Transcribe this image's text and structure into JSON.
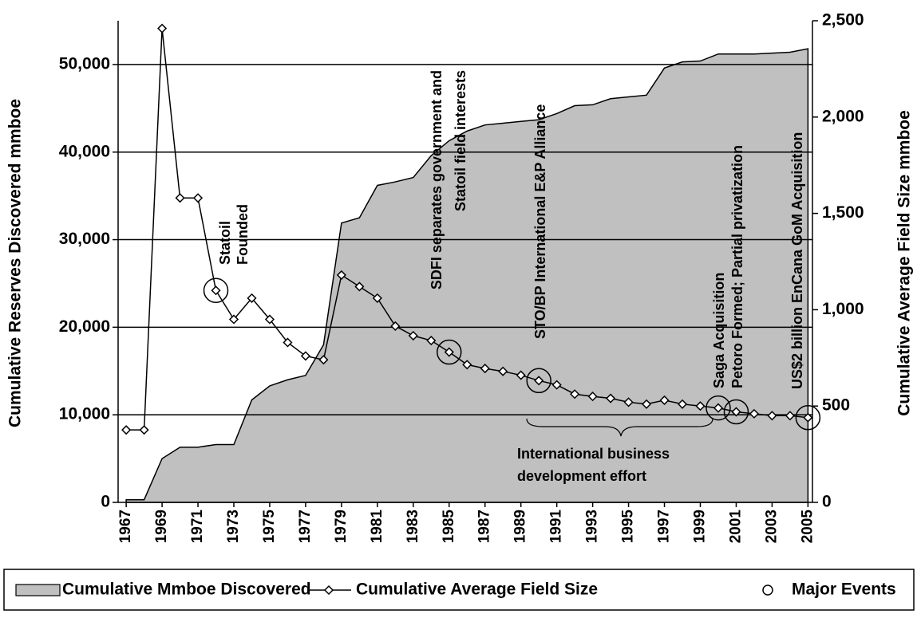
{
  "chart_data": {
    "type": "area_line",
    "x": [
      1967,
      1968,
      1969,
      1970,
      1971,
      1972,
      1973,
      1974,
      1975,
      1976,
      1977,
      1978,
      1979,
      1980,
      1981,
      1982,
      1983,
      1984,
      1985,
      1986,
      1987,
      1988,
      1989,
      1990,
      1991,
      1992,
      1993,
      1994,
      1995,
      1996,
      1997,
      1998,
      1999,
      2000,
      2001,
      2002,
      2003,
      2004,
      2005
    ],
    "xlim": [
      1966.55,
      2005.25
    ],
    "xticks": [
      1967,
      1969,
      1971,
      1973,
      1975,
      1977,
      1979,
      1981,
      1983,
      1985,
      1987,
      1989,
      1991,
      1993,
      1995,
      1997,
      1999,
      2001,
      2003,
      2005
    ],
    "ylabel": "Cumulative Reserves Discovered mmboe",
    "y2label": "Cumulative Average Field Size mmboe",
    "ylim": [
      0,
      55000
    ],
    "yticks": [
      {
        "value": 0,
        "label": "0"
      },
      {
        "value": 10000,
        "label": "10,000"
      },
      {
        "value": 20000,
        "label": "20,000"
      },
      {
        "value": 30000,
        "label": "30,000"
      },
      {
        "value": 40000,
        "label": "40,000"
      },
      {
        "value": 50000,
        "label": "50,000"
      }
    ],
    "y2lim": [
      0,
      2500
    ],
    "y2ticks": [
      0,
      500,
      {
        "value": 1000,
        "label": "1,000"
      },
      {
        "value": 1500,
        "label": "1,500"
      },
      {
        "value": 2000,
        "label": "2,000"
      },
      {
        "value": 2500,
        "label": "2,500"
      }
    ],
    "grid": true,
    "series": [
      {
        "name": "Cumulative Mmboe Discovered",
        "kind": "area",
        "color": "#c0c0c0",
        "values": [
          300,
          300,
          5000,
          6300,
          6300,
          6600,
          6600,
          11700,
          13300,
          14000,
          14500,
          18000,
          31900,
          32500,
          36200,
          36600,
          37100,
          39600,
          41300,
          42400,
          43100,
          43300,
          43500,
          43700,
          44400,
          45300,
          45400,
          46100,
          46300,
          46500,
          49600,
          50300,
          50400,
          51200,
          51200,
          51200,
          51300,
          51400,
          51800
        ]
      },
      {
        "name": "Cumulative Average Field Size",
        "kind": "line",
        "axis": "y2",
        "color": "#000000",
        "values": [
          376,
          376,
          2460,
          1580,
          1580,
          1100,
          950,
          1060,
          950,
          830,
          760,
          740,
          1180,
          1120,
          1060,
          915,
          865,
          840,
          780,
          715,
          695,
          680,
          660,
          632,
          610,
          562,
          550,
          540,
          520,
          510,
          530,
          510,
          500,
          490,
          470,
          460,
          450,
          450,
          440
        ]
      },
      {
        "name": "Major Events",
        "kind": "events",
        "axis": "y2",
        "color": "#000000",
        "x": [
          1972,
          1985,
          1990,
          2000,
          2001,
          2005
        ]
      }
    ],
    "annotations": [
      {
        "lines": [
          "Statoil",
          "Founded"
        ]
      },
      {
        "lines": [
          "SDFI separates government and",
          "Statoil field interests"
        ]
      },
      {
        "lines": [
          "STO/BP International E&P Alliance"
        ]
      },
      {
        "lines": [
          "Saga Acquisition",
          "Petoro Formed; Partial privatization"
        ]
      },
      {
        "lines": [
          "US$2 billion EnCana GoM Acquisition"
        ]
      },
      {
        "lines": [
          "International business",
          "development effort"
        ]
      }
    ]
  }
}
